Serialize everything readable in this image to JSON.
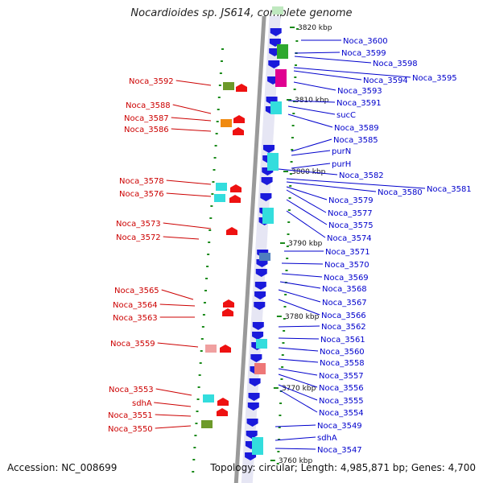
{
  "title": "Nocardioides sp. JS614, complete genome",
  "footer": {
    "accession": "Accession: NC_008699",
    "topology": "Topology: circular; Length: 4,985,871 bp; Genes: 4,700"
  },
  "colors": {
    "reverse_label": "#cc0000",
    "forward_label": "#0000cc",
    "forward_strand": "#1a1adb",
    "reverse_strand": "#ee1111",
    "tick": "#1a8a1a",
    "backbone": "#8a8a8a"
  },
  "scale_labels": [
    "3820 kbp",
    "3810 kbp",
    "3800 kbp",
    "3790 kbp",
    "3780 kbp",
    "3770 kbp",
    "3760 kbp"
  ],
  "reverse_genes": [
    "Noca_3592",
    "Noca_3588",
    "Noca_3587",
    "Noca_3586",
    "Noca_3578",
    "Noca_3576",
    "Noca_3573",
    "Noca_3572",
    "Noca_3565",
    "Noca_3564",
    "Noca_3563",
    "Noca_3559",
    "Noca_3553",
    "sdhA",
    "Noca_3551",
    "Noca_3550"
  ],
  "forward_genes": [
    "Noca_3600",
    "Noca_3599",
    "Noca_3598",
    "Noca_3595",
    "Noca_3594",
    "Noca_3593",
    "Noca_3591",
    "sucC",
    "Noca_3589",
    "Noca_3585",
    "purN",
    "purH",
    "Noca_3582",
    "Noca_3581",
    "Noca_3580",
    "Noca_3579",
    "Noca_3577",
    "Noca_3575",
    "Noca_3574",
    "Noca_3571",
    "Noca_3570",
    "Noca_3569",
    "Noca_3568",
    "Noca_3567",
    "Noca_3566",
    "Noca_3562",
    "Noca_3561",
    "Noca_3560",
    "Noca_3558",
    "Noca_3557",
    "Noca_3556",
    "Noca_3555",
    "Noca_3554",
    "Noca_3549",
    "sdhA",
    "Noca_3547"
  ]
}
